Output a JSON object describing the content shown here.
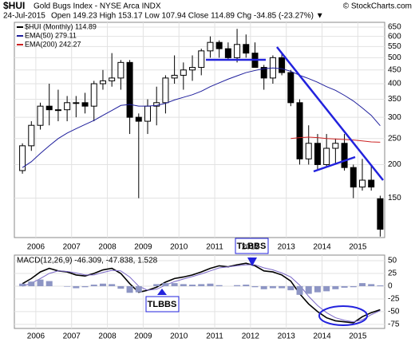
{
  "header": {
    "symbol": "$HUI",
    "name": "Gold Bugs Index - NYSE Arca INDX",
    "source": "© StockCharts.com",
    "date": "24-Jul-2015",
    "ohlc": "Open 149.23  High 153.17  Low 107.94  Close 114.89  Chg -34.85 (-23.27%) ▼"
  },
  "annotations": [
    "TLBBS",
    "TLBBS"
  ],
  "chart_data": [
    {
      "type": "candlestick",
      "log_scale": true,
      "grid": true,
      "x": [
        2005.625,
        2005.875,
        2006.125,
        2006.375,
        2006.625,
        2006.875,
        2007.125,
        2007.375,
        2007.625,
        2007.875,
        2008.125,
        2008.375,
        2008.625,
        2008.875,
        2009.125,
        2009.375,
        2009.625,
        2009.875,
        2010.125,
        2010.375,
        2010.625,
        2010.875,
        2011.125,
        2011.375,
        2011.625,
        2011.875,
        2012.125,
        2012.375,
        2012.625,
        2012.875,
        2013.125,
        2013.375,
        2013.625,
        2013.875,
        2014.125,
        2014.375,
        2014.625,
        2014.875,
        2015.125,
        2015.375,
        2015.625
      ],
      "open": [
        190,
        235,
        280,
        330,
        320,
        320,
        340,
        340,
        330,
        400,
        410,
        420,
        480,
        300,
        290,
        330,
        340,
        420,
        430,
        450,
        460,
        530,
        570,
        540,
        500,
        560,
        520,
        460,
        420,
        500,
        440,
        340,
        210,
        240,
        200,
        230,
        240,
        195,
        165,
        175,
        149.23
      ],
      "high": [
        240,
        290,
        340,
        400,
        380,
        360,
        360,
        370,
        410,
        450,
        520,
        490,
        490,
        310,
        350,
        390,
        430,
        510,
        480,
        510,
        540,
        600,
        580,
        570,
        640,
        610,
        570,
        470,
        510,
        520,
        450,
        350,
        280,
        260,
        260,
        250,
        260,
        200,
        210,
        200,
        153.17
      ],
      "low": [
        185,
        225,
        270,
        280,
        290,
        290,
        300,
        310,
        290,
        380,
        390,
        380,
        260,
        150,
        260,
        280,
        310,
        400,
        380,
        410,
        430,
        500,
        500,
        490,
        480,
        500,
        460,
        380,
        400,
        430,
        330,
        200,
        200,
        190,
        195,
        200,
        190,
        150,
        160,
        160,
        107.94
      ],
      "close": [
        235,
        280,
        330,
        320,
        320,
        340,
        340,
        330,
        400,
        410,
        420,
        480,
        300,
        290,
        330,
        340,
        420,
        430,
        450,
        460,
        530,
        570,
        540,
        500,
        560,
        520,
        460,
        420,
        500,
        440,
        340,
        210,
        240,
        200,
        230,
        240,
        195,
        165,
        175,
        165,
        114.89
      ],
      "series": [
        {
          "name": "$HUI (Monthly) 114.89",
          "color": "#000000"
        },
        {
          "name": "EMA(50) 279.11",
          "color": "#1f1f9c",
          "values": [
            195,
            205,
            220,
            235,
            250,
            262,
            272,
            282,
            292,
            305,
            318,
            332,
            335,
            330,
            330,
            332,
            338,
            348,
            356,
            364,
            375,
            390,
            403,
            416,
            428,
            440,
            448,
            455,
            458,
            455,
            445,
            430,
            418,
            405,
            390,
            378,
            362,
            345,
            325,
            305,
            279.11
          ]
        },
        {
          "name": "EMA(200) 242.27",
          "color": "#cc2222",
          "values": [
            null,
            null,
            null,
            null,
            null,
            null,
            null,
            null,
            null,
            null,
            null,
            null,
            null,
            null,
            null,
            null,
            null,
            null,
            null,
            null,
            null,
            null,
            null,
            null,
            null,
            null,
            null,
            null,
            null,
            null,
            250,
            252,
            253,
            252,
            250,
            249,
            248,
            247,
            245,
            243,
            242.27
          ]
        }
      ],
      "xlim": [
        2005.4,
        2015.75
      ],
      "xticks": [
        2006,
        2007,
        2008,
        2009,
        2010,
        2011,
        2012,
        2013,
        2014,
        2015
      ],
      "ylim": [
        107,
        677
      ],
      "yticks": [
        150,
        200,
        250,
        300,
        350,
        400,
        450,
        500,
        550,
        600,
        650
      ]
    },
    {
      "type": "macd",
      "title": "MACD(12,26,9) -46.309, -47.838, 1.528",
      "grid": true,
      "series": [
        {
          "name": "MACD",
          "color": "#000000",
          "values": [
            5,
            15,
            28,
            35,
            30,
            28,
            22,
            20,
            25,
            32,
            35,
            25,
            5,
            -12,
            -8,
            -2,
            8,
            15,
            18,
            22,
            28,
            35,
            40,
            38,
            42,
            45,
            40,
            30,
            28,
            22,
            10,
            -15,
            -35,
            -50,
            -62,
            -68,
            -70,
            -72,
            -60,
            -52,
            -46.309
          ]
        },
        {
          "name": "Signal",
          "color": "#7b68c8",
          "values": [
            0,
            6,
            15,
            25,
            30,
            29,
            26,
            22,
            22,
            27,
            31,
            30,
            18,
            0,
            -8,
            -6,
            2,
            9,
            14,
            19,
            24,
            30,
            36,
            38,
            40,
            42,
            42,
            36,
            32,
            26,
            18,
            2,
            -20,
            -38,
            -52,
            -62,
            -67,
            -70,
            -66,
            -56,
            -47.838
          ]
        },
        {
          "name": "Histogram",
          "color": "#8d95c4",
          "values": [
            5,
            9,
            13,
            10,
            0,
            -1,
            -4,
            -2,
            3,
            5,
            4,
            -5,
            -13,
            -12,
            0,
            4,
            6,
            6,
            4,
            3,
            4,
            5,
            2,
            0,
            2,
            3,
            -2,
            -6,
            -4,
            -4,
            -8,
            -17,
            -15,
            -12,
            -10,
            -6,
            -3,
            -2,
            6,
            4,
            1.528
          ]
        }
      ],
      "xlim": [
        2005.4,
        2015.75
      ],
      "xticks": [
        2006,
        2007,
        2008,
        2009,
        2010,
        2011,
        2012,
        2013,
        2014,
        2015
      ],
      "ylim": [
        -83,
        61
      ],
      "yticks": [
        50,
        25,
        0,
        -25,
        -50,
        -75
      ]
    }
  ]
}
